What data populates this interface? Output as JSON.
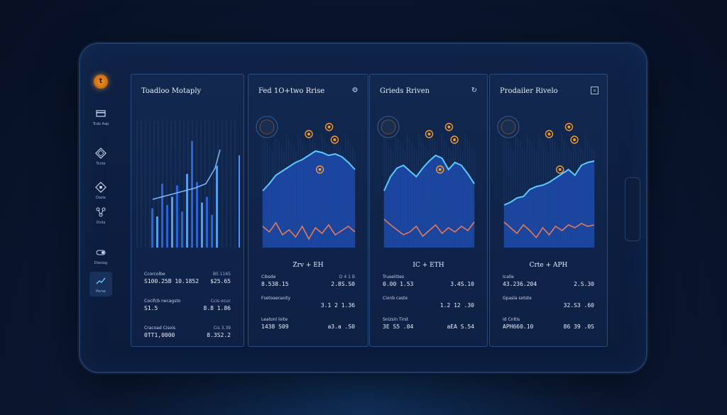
{
  "rail": {
    "logo_glyph": "t",
    "items": [
      {
        "icon": "card-icon",
        "label": "Tcdo Aap"
      },
      {
        "icon": "diamond-icon",
        "label": "Tcnte"
      },
      {
        "icon": "target-icon",
        "label": "Dazie"
      },
      {
        "icon": "network-icon",
        "label": "Ocda"
      },
      {
        "icon": "toggle-icon",
        "label": "Dieslag"
      },
      {
        "icon": "trend-icon",
        "label": "Perse"
      }
    ]
  },
  "panels": [
    {
      "title": "Toadloo Motaply",
      "icon": "",
      "pair": "",
      "stats": [
        {
          "label": "Ccorcolbe",
          "value": "S100.25B 10.1852",
          "sub": "BS 1165",
          "num": "$25.65"
        },
        {
          "label": "Cocifcb necagsto",
          "value": "S1.5",
          "sub": "Ccis ocuc",
          "num": "8.8 1.86"
        },
        {
          "label": "Cracoad Cisois",
          "value": "0TT1,0000",
          "sub": "Cis 3.39",
          "num": "8.3S2.2"
        }
      ]
    },
    {
      "title": "Fed 1O+two Rrise",
      "icon": "settings-icon",
      "pair": "Zrv + EH",
      "stats": [
        {
          "label": "Cibsde",
          "value": "8.538.15",
          "sub": "D 4 1 B",
          "num": "2.8S.S0"
        },
        {
          "label": "Fsetoaeraoity",
          "value": "",
          "sub": "",
          "num": "3.1 2 1.36"
        },
        {
          "label": "Leatonl loite",
          "value": "1438 S09",
          "sub": "",
          "num": "a3.a .S0"
        }
      ]
    },
    {
      "title": "Grieds Rriven",
      "icon": "refresh-icon",
      "pair": "IC + ETH",
      "stats": [
        {
          "label": "Truselities",
          "value": "0.00 1.53",
          "sub": "",
          "num": "3.4S.10"
        },
        {
          "label": "Cixnb caste",
          "value": "",
          "sub": "",
          "num": "1.2 12 .30"
        },
        {
          "label": "Snizsin Tirst",
          "value": "3E S5 .04",
          "sub": "",
          "num": "aEA S.54"
        }
      ]
    },
    {
      "title": "Prodailer Rivelo",
      "icon": "window-icon",
      "pair": "Crte + APH",
      "stats": [
        {
          "label": "Icalle",
          "value": "43.236.204",
          "sub": "",
          "num": "2.S.30"
        },
        {
          "label": "Gpasla sotste",
          "value": "",
          "sub": "",
          "num": "32.S3 .60"
        },
        {
          "label": "Id Cnltis",
          "value": "APH660.10",
          "sub": "",
          "num": "86 39 .0S"
        }
      ]
    }
  ],
  "chart_data": [
    {
      "type": "bar",
      "title": "Toadloo Motaply",
      "values": [
        48,
        38,
        78,
        52,
        62,
        76,
        44,
        90,
        130,
        80,
        55,
        62,
        40,
        100
      ]
    },
    {
      "type": "area",
      "title": "Fed 1O+two Rrise",
      "x_label": "Zrv + EH"
    },
    {
      "type": "area",
      "title": "Grieds Rriven",
      "x_label": "IC + ETH"
    },
    {
      "type": "area",
      "title": "Prodailer Rivelo",
      "x_label": "Crte + APH"
    }
  ],
  "colors": {
    "accent_blue": "#3b7ff2",
    "accent_cyan": "#5fc9ff",
    "accent_orange": "#f39a2c",
    "salmon": "#e57a55",
    "panel_bg": "#12284f"
  }
}
